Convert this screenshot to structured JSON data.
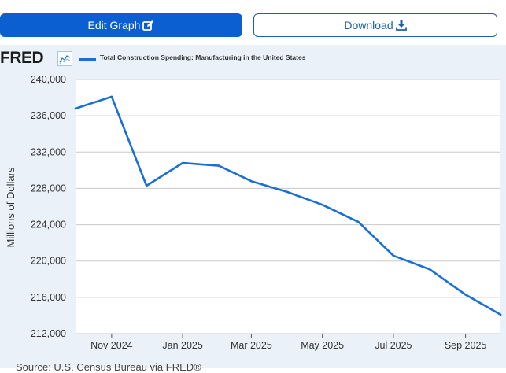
{
  "toolbar": {
    "edit_label": "Edit Graph",
    "edit_icon": "edit-icon",
    "download_label": "Download",
    "download_icon": "download-icon"
  },
  "brand": {
    "logo_text": "FRED",
    "icon": "line-chart-icon"
  },
  "source_text": "Source: U.S. Census Bureau via FRED®",
  "colors": {
    "accent": "#0b5fd1",
    "series": "#1a6fd6",
    "panel": "#eaf1f9",
    "grid": "#c9c9c9"
  },
  "chart_data": {
    "type": "line",
    "title": "",
    "xlabel": "",
    "ylabel": "Millions of Dollars",
    "grid": true,
    "legend": "top-left",
    "ylim": [
      212000,
      240000
    ],
    "yticks": [
      212000,
      216000,
      220000,
      224000,
      228000,
      232000,
      236000,
      240000
    ],
    "ytick_labels": [
      "212,000",
      "216,000",
      "220,000",
      "224,000",
      "228,000",
      "232,000",
      "236,000",
      "240,000"
    ],
    "xlim": [
      "2024-10-01",
      "2025-10-01"
    ],
    "xticks": [
      "2024-11-01",
      "2025-01-01",
      "2025-03-01",
      "2025-05-01",
      "2025-07-01",
      "2025-09-01"
    ],
    "xtick_labels": [
      "Nov 2024",
      "Jan 2025",
      "Mar 2025",
      "May 2025",
      "Jul 2025",
      "Sep 2025"
    ],
    "series": [
      {
        "name": "Total Construction Spending: Manufacturing in the United States",
        "x": [
          "2024-10-01",
          "2024-11-01",
          "2024-12-01",
          "2025-01-01",
          "2025-02-01",
          "2025-03-01",
          "2025-04-01",
          "2025-05-01",
          "2025-06-01",
          "2025-07-01",
          "2025-08-01",
          "2025-09-01",
          "2025-10-01"
        ],
        "values": [
          236800,
          238100,
          228300,
          230800,
          230500,
          228800,
          227600,
          226200,
          224300,
          220600,
          219100,
          216300,
          214100
        ]
      }
    ]
  }
}
